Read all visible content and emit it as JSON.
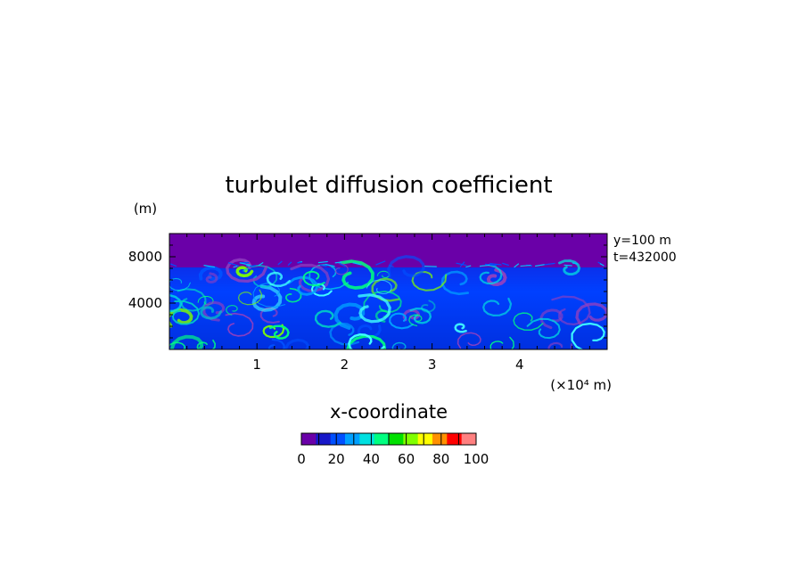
{
  "chart_data": {
    "type": "heatmap",
    "title": "turbulet diffusion coefficient",
    "xlabel": "x-coordinate",
    "ylabel": "(m)",
    "x_unit": "(×10⁴ m)",
    "xlim": [
      0,
      5
    ],
    "ylim": [
      0,
      10000
    ],
    "xticks": [
      1,
      2,
      3,
      4
    ],
    "yticks": [
      4000,
      8000
    ],
    "ytick_labels": [
      "4000",
      "8000"
    ],
    "annotations": [
      "y=100 m",
      "t=432000"
    ],
    "colorbar": {
      "range": [
        0,
        100
      ],
      "ticks": [
        0,
        20,
        40,
        60,
        80,
        100
      ],
      "colors": [
        "#6a00a8",
        "#1818c8",
        "#0050ff",
        "#00a0ff",
        "#00e0e0",
        "#00ff80",
        "#00e000",
        "#80ff00",
        "#ffff00",
        "#ff9000",
        "#ff0000",
        "#ff8080"
      ]
    },
    "grid": false
  }
}
